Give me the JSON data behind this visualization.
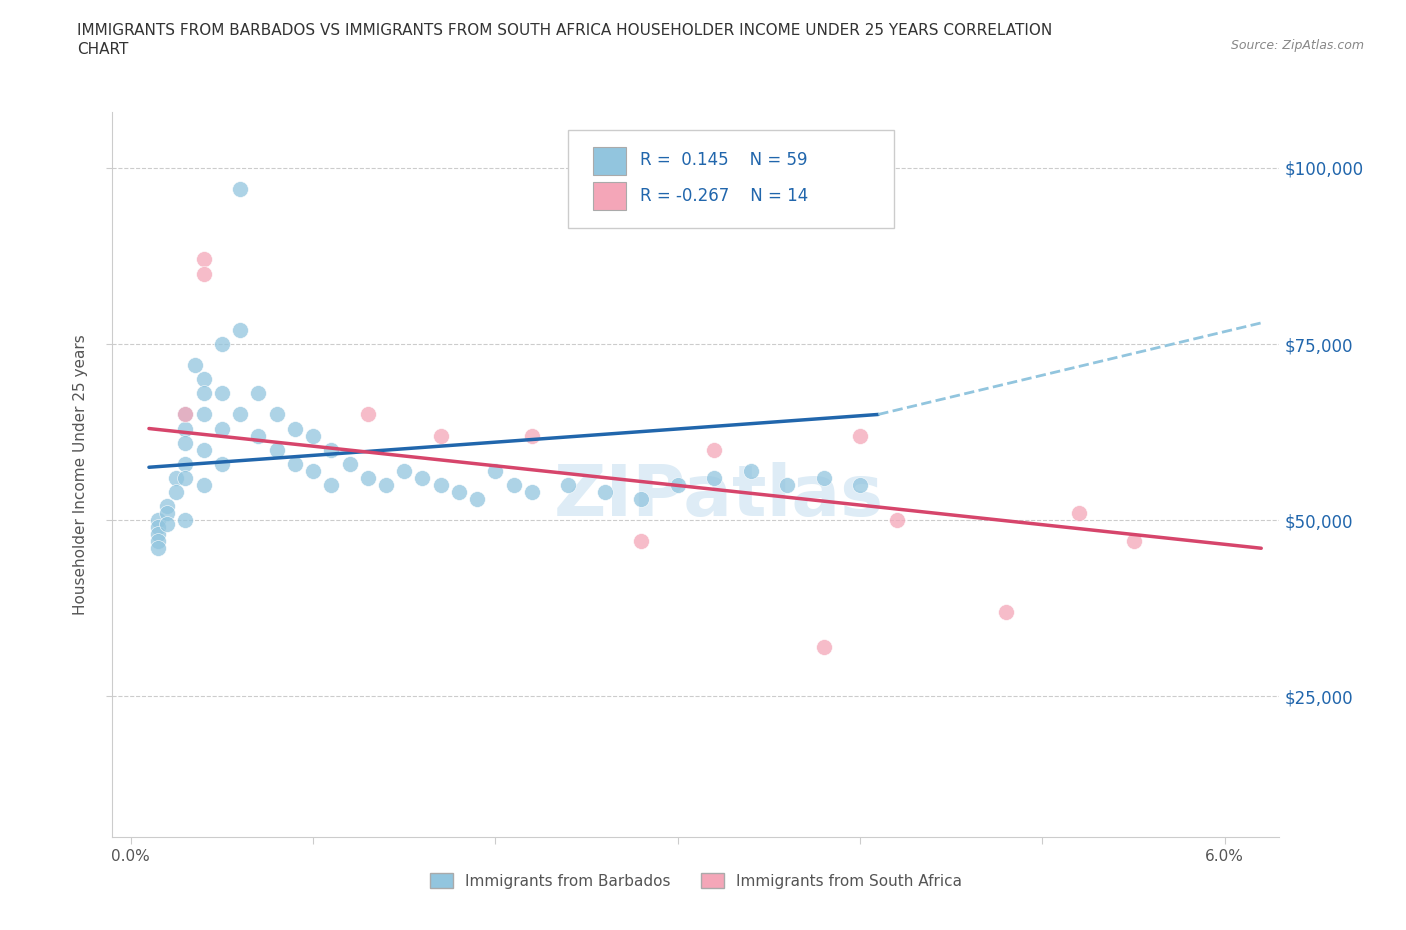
{
  "title_line1": "IMMIGRANTS FROM BARBADOS VS IMMIGRANTS FROM SOUTH AFRICA HOUSEHOLDER INCOME UNDER 25 YEARS CORRELATION",
  "title_line2": "CHART",
  "source_text": "Source: ZipAtlas.com",
  "ylabel": "Householder Income Under 25 years",
  "legend_labels": [
    "Immigrants from Barbados",
    "Immigrants from South Africa"
  ],
  "r_barbados": 0.145,
  "n_barbados": 59,
  "r_sa": -0.267,
  "n_sa": 14,
  "xlim": [
    -0.001,
    0.063
  ],
  "ylim": [
    5000,
    108000
  ],
  "yticks": [
    25000,
    50000,
    75000,
    100000
  ],
  "ytick_labels": [
    "$25,000",
    "$50,000",
    "$75,000",
    "$100,000"
  ],
  "xticks": [
    0.0,
    0.01,
    0.02,
    0.03,
    0.04,
    0.05,
    0.06
  ],
  "xtick_labels": [
    "0.0%",
    "",
    "",
    "",
    "",
    "",
    "6.0%"
  ],
  "blue_color": "#92c5de",
  "blue_line_color": "#2166ac",
  "pink_color": "#f4a6b8",
  "pink_line_color": "#d6456b",
  "dashed_line_color": "#92c5de",
  "watermark": "ZIPatlas",
  "barbados_x": [
    0.0015,
    0.0015,
    0.0015,
    0.0015,
    0.0015,
    0.002,
    0.002,
    0.002,
    0.0025,
    0.0025,
    0.003,
    0.003,
    0.003,
    0.003,
    0.003,
    0.003,
    0.0035,
    0.004,
    0.004,
    0.004,
    0.004,
    0.004,
    0.005,
    0.005,
    0.005,
    0.005,
    0.006,
    0.006,
    0.007,
    0.007,
    0.008,
    0.008,
    0.009,
    0.009,
    0.01,
    0.01,
    0.011,
    0.011,
    0.012,
    0.013,
    0.014,
    0.015,
    0.016,
    0.017,
    0.018,
    0.019,
    0.02,
    0.021,
    0.022,
    0.024,
    0.026,
    0.028,
    0.03,
    0.032,
    0.034,
    0.036,
    0.038,
    0.04,
    0.006
  ],
  "barbados_y": [
    50000,
    49000,
    48000,
    47000,
    46000,
    52000,
    51000,
    49500,
    56000,
    54000,
    65000,
    63000,
    61000,
    58000,
    56000,
    50000,
    72000,
    70000,
    68000,
    65000,
    60000,
    55000,
    75000,
    68000,
    63000,
    58000,
    77000,
    65000,
    68000,
    62000,
    65000,
    60000,
    63000,
    58000,
    62000,
    57000,
    60000,
    55000,
    58000,
    56000,
    55000,
    57000,
    56000,
    55000,
    54000,
    53000,
    57000,
    55000,
    54000,
    55000,
    54000,
    53000,
    55000,
    56000,
    57000,
    55000,
    56000,
    55000,
    97000
  ],
  "sa_x": [
    0.003,
    0.004,
    0.004,
    0.013,
    0.017,
    0.022,
    0.028,
    0.032,
    0.038,
    0.04,
    0.042,
    0.048,
    0.052,
    0.055
  ],
  "sa_y": [
    65000,
    87000,
    85000,
    65000,
    62000,
    62000,
    47000,
    60000,
    32000,
    62000,
    50000,
    37000,
    51000,
    47000
  ]
}
